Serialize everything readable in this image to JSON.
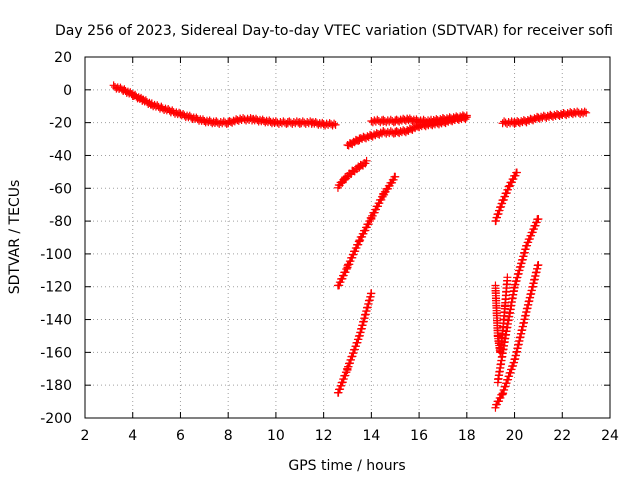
{
  "chart_data": {
    "type": "scatter",
    "title": "Day 256 of 2023, Sidereal Day-to-day VTEC variation (SDTVAR) for receiver sofi",
    "xlabel": "GPS time / hours",
    "ylabel": "SDTVAR / TECUs",
    "xlim": [
      2,
      24
    ],
    "ylim": [
      -200,
      20
    ],
    "xticks": [
      "2",
      "4",
      "6",
      "8",
      "10",
      "12",
      "14",
      "16",
      "18",
      "20",
      "22",
      "24"
    ],
    "yticks": [
      "20",
      "0",
      "-20",
      "-40",
      "-60",
      "-80",
      "-100",
      "-120",
      "-140",
      "-160",
      "-180",
      "-200"
    ],
    "grid": true,
    "legend": "none",
    "marker": "plus",
    "color": "#ff0000",
    "series": [
      {
        "x": [
          3.2,
          3.6,
          4.0,
          4.4,
          4.8,
          5.2,
          5.6,
          6.0,
          6.5,
          7.0,
          7.5,
          8.0,
          8.5,
          9.0,
          9.5,
          10.0,
          10.5,
          11.0,
          11.5,
          12.0,
          12.5
        ],
        "y": [
          2,
          0,
          -3,
          -6,
          -9,
          -11,
          -13,
          -15,
          -17,
          -19,
          -20,
          -20,
          -18,
          -18,
          -19,
          -20,
          -20,
          -20,
          -20,
          -21,
          -21
        ]
      },
      {
        "x": [
          13.0,
          13.5,
          14.0,
          14.5,
          15.0,
          15.5,
          16.0,
          16.5,
          17.0,
          17.5,
          18.0
        ],
        "y": [
          -34,
          -30,
          -28,
          -26,
          -26,
          -25,
          -22,
          -21,
          -20,
          -18,
          -17
        ]
      },
      {
        "x": [
          14.0,
          14.5,
          15.0,
          15.5,
          16.0,
          16.5,
          17.0,
          17.5,
          18.0
        ],
        "y": [
          -19,
          -19,
          -19,
          -18,
          -19,
          -19,
          -18,
          -17,
          -16
        ]
      },
      {
        "x": [
          19.5,
          20.0,
          20.5,
          21.0,
          21.5,
          22.0,
          22.5,
          23.0
        ],
        "y": [
          -20,
          -20,
          -19,
          -17,
          -16,
          -15,
          -14,
          -14
        ]
      },
      {
        "x": [
          12.6,
          12.9,
          13.2,
          13.5,
          13.8
        ],
        "y": [
          -59,
          -54,
          -50,
          -47,
          -44
        ]
      },
      {
        "x": [
          12.6,
          13.0,
          13.5,
          14.0,
          14.5,
          15.0
        ],
        "y": [
          -120,
          -108,
          -92,
          -78,
          -64,
          -53
        ]
      },
      {
        "x": [
          12.6,
          13.0,
          13.5,
          14.0
        ],
        "y": [
          -185,
          -170,
          -150,
          -124
        ]
      },
      {
        "x": [
          19.2,
          19.5,
          19.8,
          20.1
        ],
        "y": [
          -80,
          -68,
          -58,
          -50
        ]
      },
      {
        "x": [
          19.3,
          19.6,
          20.0,
          20.5,
          21.0
        ],
        "y": [
          -178,
          -152,
          -120,
          -95,
          -78
        ]
      },
      {
        "x": [
          19.2,
          19.5,
          20.0,
          20.5,
          21.0
        ],
        "y": [
          -193,
          -185,
          -165,
          -135,
          -106
        ]
      },
      {
        "x": [
          19.2,
          19.3,
          19.4,
          19.5,
          19.6,
          19.7
        ],
        "y": [
          -120,
          -150,
          -160,
          -148,
          -132,
          -115
        ]
      }
    ]
  }
}
